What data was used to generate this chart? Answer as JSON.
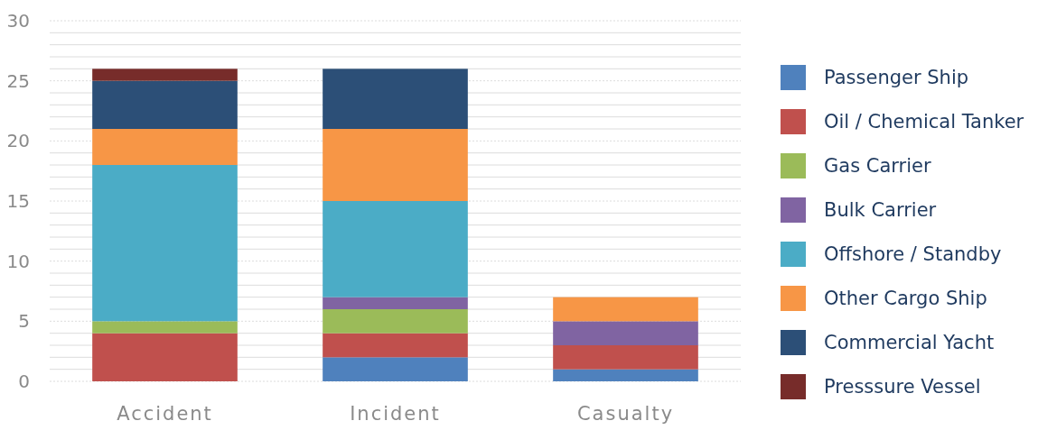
{
  "chart_data": {
    "type": "bar",
    "stacked": true,
    "categories": [
      "Accident",
      "Incident",
      "Casualty"
    ],
    "series": [
      {
        "name": "Passenger Ship",
        "color": "#4f81bd",
        "values": [
          0,
          2,
          1
        ]
      },
      {
        "name": "Oil / Chemical Tanker",
        "color": "#c0504d",
        "values": [
          4,
          2,
          2
        ]
      },
      {
        "name": "Gas Carrier",
        "color": "#9bbb59",
        "values": [
          1,
          2,
          0
        ]
      },
      {
        "name": "Bulk Carrier",
        "color": "#8064a2",
        "values": [
          0,
          1,
          2
        ]
      },
      {
        "name": "Offshore / Standby",
        "color": "#4bacc6",
        "values": [
          13,
          8,
          0
        ]
      },
      {
        "name": "Other Cargo Ship",
        "color": "#f79646",
        "values": [
          3,
          6,
          2
        ]
      },
      {
        "name": "Commercial Yacht",
        "color": "#2c4f77",
        "values": [
          4,
          5,
          0
        ]
      },
      {
        "name": "Presssure Vessel",
        "color": "#772c2a",
        "values": [
          1,
          0,
          0
        ]
      }
    ],
    "ylim": [
      0,
      30
    ],
    "yticks": [
      0,
      {
        "value": 1,
        "label": null
      },
      {
        "value": 2,
        "label": null
      },
      {
        "value": 3,
        "label": null
      },
      {
        "value": 4,
        "label": null
      },
      5,
      {
        "value": 6,
        "label": null
      },
      {
        "value": 7,
        "label": null
      },
      {
        "value": 8,
        "label": null
      },
      {
        "value": 9,
        "label": null
      },
      10,
      {
        "value": 11,
        "label": null
      },
      {
        "value": 12,
        "label": null
      },
      {
        "value": 13,
        "label": null
      },
      {
        "value": 14,
        "label": null
      },
      15,
      {
        "value": 16,
        "label": null
      },
      {
        "value": 17,
        "label": null
      },
      {
        "value": 18,
        "label": null
      },
      {
        "value": 19,
        "label": null
      },
      20,
      {
        "value": 21,
        "label": null
      },
      {
        "value": 22,
        "label": null
      },
      {
        "value": 23,
        "label": null
      },
      {
        "value": 24,
        "label": null
      },
      25,
      {
        "value": 26,
        "label": null
      },
      {
        "value": 27,
        "label": null
      },
      {
        "value": 28,
        "label": null
      },
      {
        "value": 29,
        "label": null
      },
      30
    ],
    "grid": "y",
    "legend": "right"
  }
}
